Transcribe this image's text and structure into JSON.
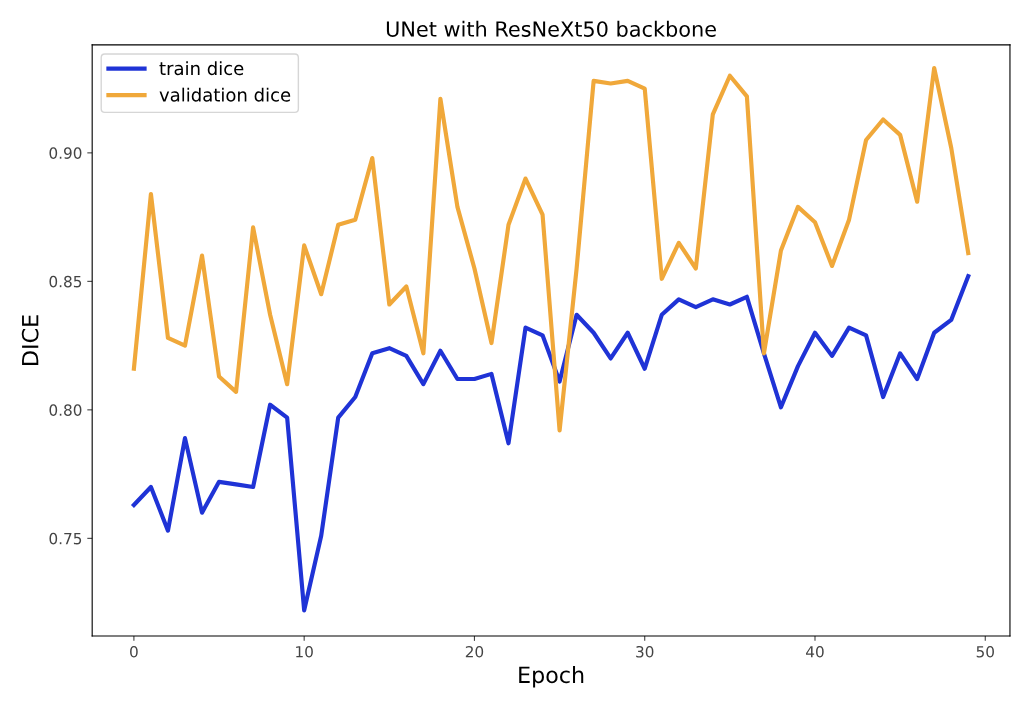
{
  "chart_data": {
    "type": "line",
    "title": "UNet with ResNeXt50 backbone",
    "xlabel": "Epoch",
    "ylabel": "DICE",
    "x": [
      0,
      1,
      2,
      3,
      4,
      5,
      6,
      7,
      8,
      9,
      10,
      11,
      12,
      13,
      14,
      15,
      16,
      17,
      18,
      19,
      20,
      21,
      22,
      23,
      24,
      25,
      26,
      27,
      28,
      29,
      30,
      31,
      32,
      33,
      34,
      35,
      36,
      37,
      38,
      39,
      40,
      41,
      42,
      43,
      44,
      45,
      46,
      47,
      48,
      49
    ],
    "series": [
      {
        "name": "train dice",
        "color": "#1f33d6",
        "values": [
          0.763,
          0.77,
          0.753,
          0.789,
          0.76,
          0.772,
          0.771,
          0.77,
          0.802,
          0.797,
          0.722,
          0.751,
          0.797,
          0.805,
          0.822,
          0.824,
          0.821,
          0.81,
          0.823,
          0.812,
          0.812,
          0.814,
          0.787,
          0.832,
          0.829,
          0.811,
          0.837,
          0.83,
          0.82,
          0.83,
          0.816,
          0.837,
          0.843,
          0.84,
          0.843,
          0.841,
          0.844,
          0.822,
          0.801,
          0.817,
          0.83,
          0.821,
          0.832,
          0.829,
          0.805,
          0.822,
          0.812,
          0.83,
          0.835,
          0.852
        ]
      },
      {
        "name": "validation dice",
        "color": "#f0a83a",
        "values": [
          0.816,
          0.884,
          0.828,
          0.825,
          0.86,
          0.813,
          0.807,
          0.871,
          0.837,
          0.81,
          0.864,
          0.845,
          0.872,
          0.874,
          0.898,
          0.841,
          0.848,
          0.822,
          0.921,
          0.879,
          0.855,
          0.826,
          0.872,
          0.89,
          0.876,
          0.792,
          0.855,
          0.928,
          0.927,
          0.928,
          0.925,
          0.851,
          0.865,
          0.855,
          0.915,
          0.93,
          0.922,
          0.822,
          0.862,
          0.879,
          0.873,
          0.856,
          0.874,
          0.905,
          0.913,
          0.907,
          0.881,
          0.933,
          0.902,
          0.861
        ]
      }
    ],
    "xlim": [
      -2.45,
      51.45
    ],
    "xticks": [
      0,
      10,
      20,
      30,
      40,
      50
    ],
    "ylim": [
      0.712,
      0.942
    ],
    "yticks": [
      {
        "value": 0.75,
        "label": "0.75"
      },
      {
        "value": 0.8,
        "label": "0.80"
      },
      {
        "value": 0.85,
        "label": "0.85"
      },
      {
        "value": 0.9,
        "label": "0.90"
      }
    ],
    "legend": "top left",
    "grid": false,
    "line_style": "solid",
    "marker": "none"
  }
}
